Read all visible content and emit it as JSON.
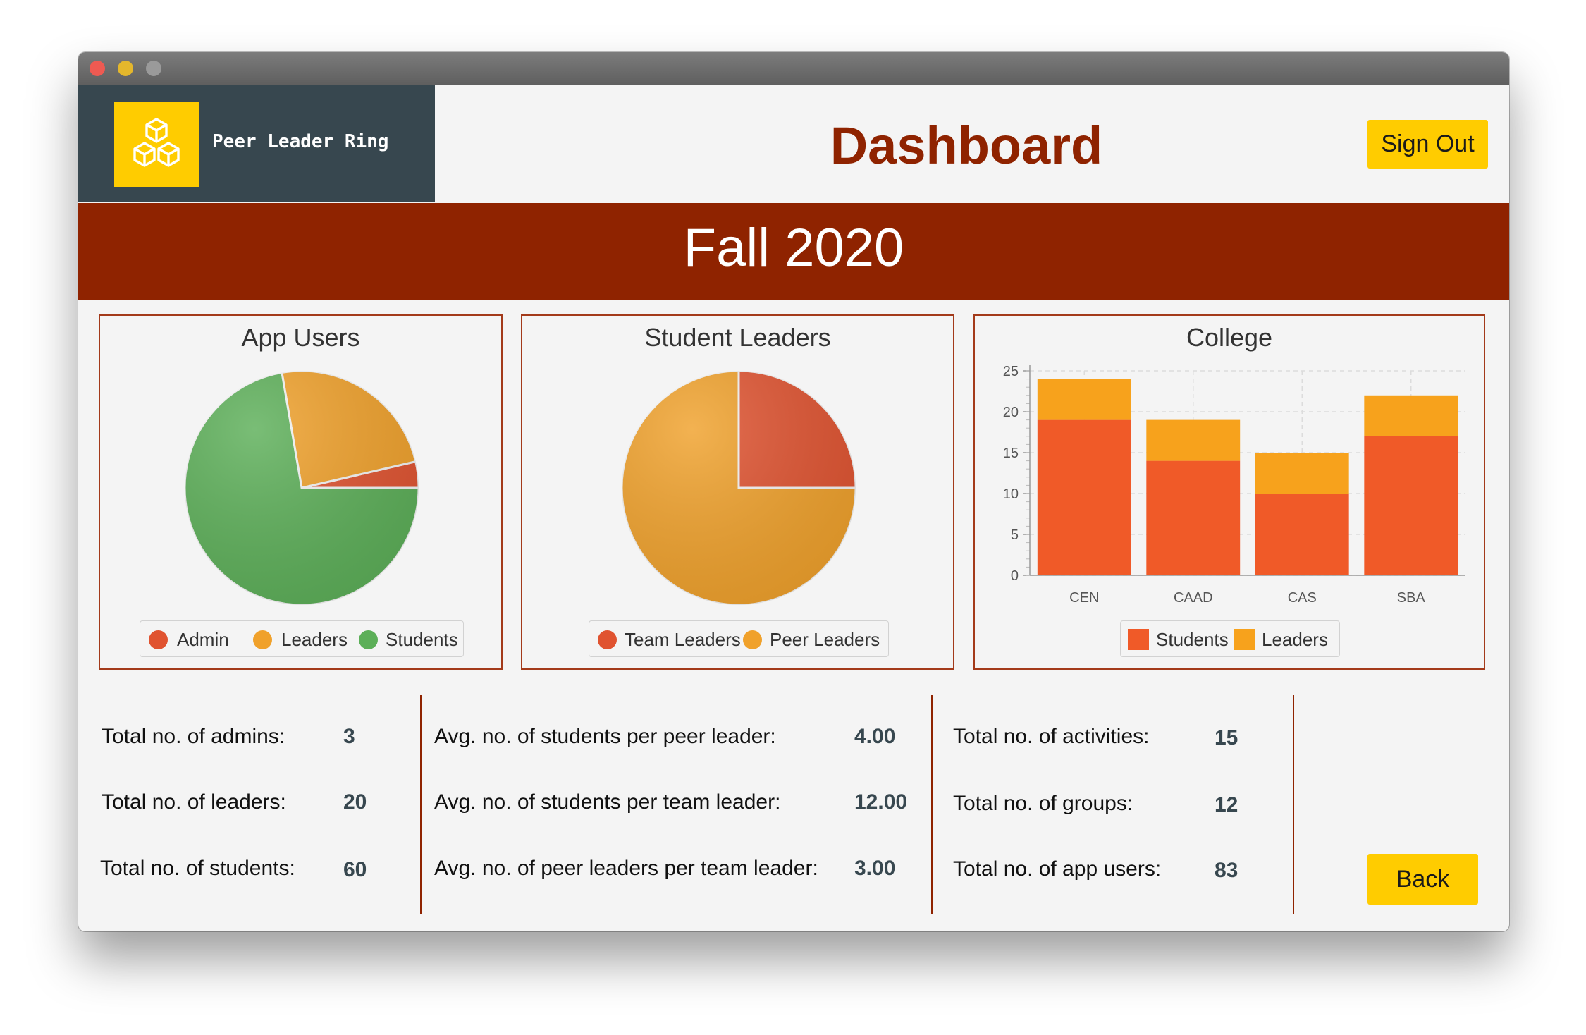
{
  "app": {
    "brand_name": "Peer Leader Ring",
    "page_title": "Dashboard",
    "sign_out_label": "Sign Out",
    "term": "Fall 2020",
    "back_label": "Back",
    "logo_icon": "cubes-icon"
  },
  "colors": {
    "titlebar": "#6e6e6e",
    "brand_bg": "#37474f",
    "accent_yellow": "#ffcc00",
    "banner": "#8f2300",
    "admin": "#e05330",
    "leaders": "#f0a12b",
    "students": "#5caf58",
    "team_leaders": "#e05330",
    "peer_leaders": "#f0a12b",
    "bar_students": "#f05a28",
    "bar_leaders": "#f7a21c"
  },
  "chart_data": [
    {
      "type": "pie",
      "title": "App Users",
      "categories": [
        "Admin",
        "Leaders",
        "Students"
      ],
      "values": [
        3,
        20,
        60
      ],
      "colors": [
        "#e05330",
        "#f0a12b",
        "#5caf58"
      ]
    },
    {
      "type": "pie",
      "title": "Student Leaders",
      "categories": [
        "Team Leaders",
        "Peer Leaders"
      ],
      "values": [
        5,
        15
      ],
      "colors": [
        "#e05330",
        "#f0a12b"
      ]
    },
    {
      "type": "bar",
      "stacked": true,
      "title": "College",
      "categories": [
        "CEN",
        "CAAD",
        "CAS",
        "SBA"
      ],
      "series": [
        {
          "name": "Students",
          "values": [
            19,
            14,
            10,
            17
          ],
          "color": "#f05a28"
        },
        {
          "name": "Leaders",
          "values": [
            5,
            5,
            5,
            5
          ],
          "color": "#f7a21c"
        }
      ],
      "ylim": [
        0,
        25
      ],
      "yticks": [
        "0",
        "5",
        "10",
        "15",
        "20",
        "25"
      ],
      "grid": true,
      "legend": "bottom"
    }
  ],
  "stats": {
    "col1": [
      {
        "label": "Total no. of admins:",
        "value": "3"
      },
      {
        "label": "Total no. of leaders:",
        "value": "20"
      },
      {
        "label": "Total no. of students:",
        "value": "60"
      }
    ],
    "col2": [
      {
        "label": "Avg. no. of students per peer leader:",
        "value": "4.00"
      },
      {
        "label": "Avg. no. of students per team leader:",
        "value": "12.00"
      },
      {
        "label": "Avg. no. of peer leaders per team leader:",
        "value": "3.00"
      }
    ],
    "col3": [
      {
        "label": "Total no. of activities:",
        "value": "15"
      },
      {
        "label": "Total no. of groups:",
        "value": "12"
      },
      {
        "label": "Total no. of app users:",
        "value": "83"
      }
    ]
  }
}
